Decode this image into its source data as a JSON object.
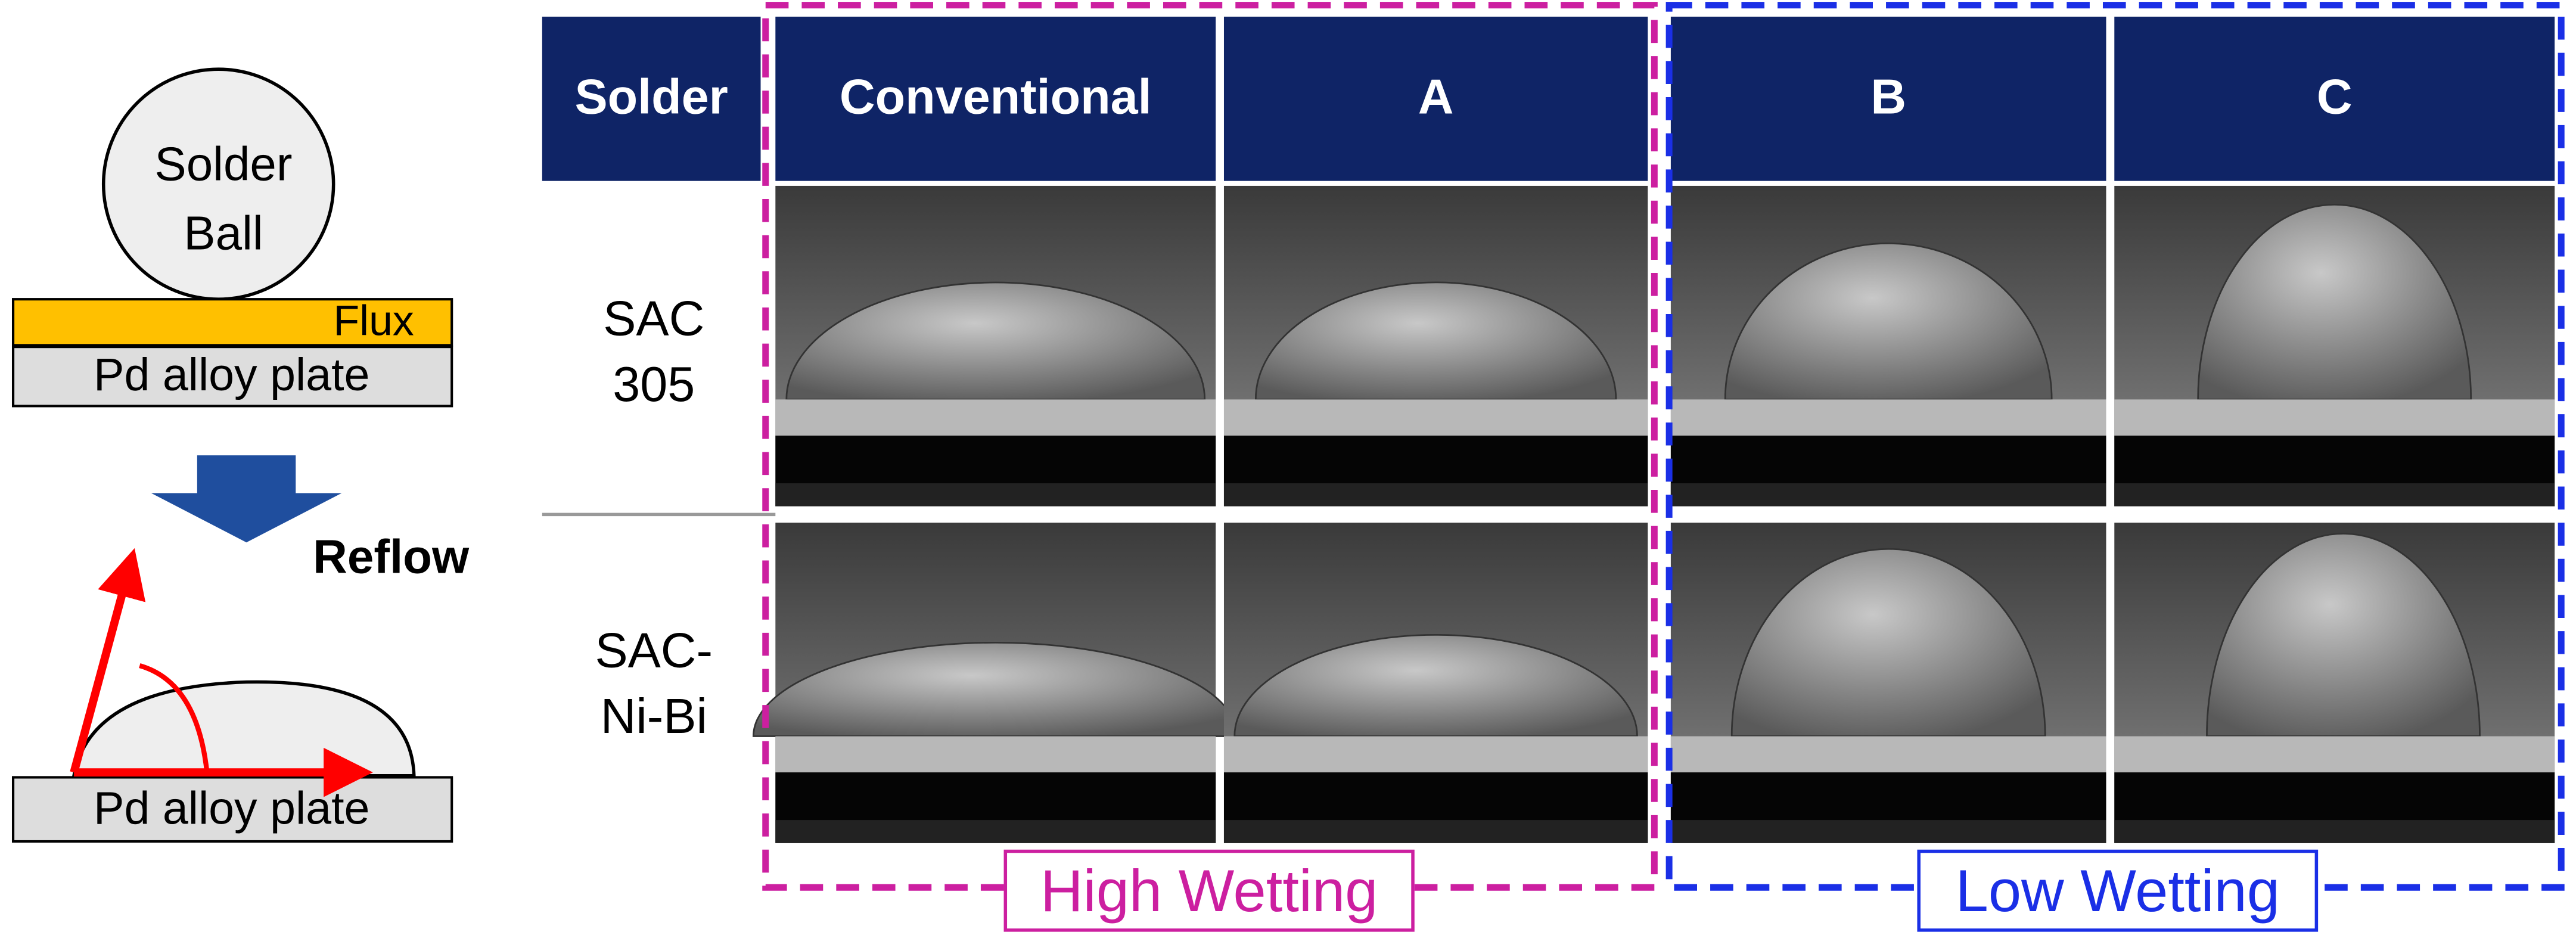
{
  "diagram": {
    "before": {
      "ball": [
        "Solder",
        "Ball"
      ],
      "flux": "Flux",
      "plate": "Pd alloy plate"
    },
    "arrow": "Reflow",
    "after": {
      "plate": "Pd alloy plate"
    }
  },
  "table": {
    "header": [
      "Solder",
      "Conventional",
      "A",
      "B",
      "C"
    ],
    "rows": [
      [
        "SAC",
        "305"
      ],
      [
        "SAC-",
        "Ni-Bi"
      ]
    ]
  },
  "groups": [
    "High Wetting",
    "Low Wetting"
  ]
}
